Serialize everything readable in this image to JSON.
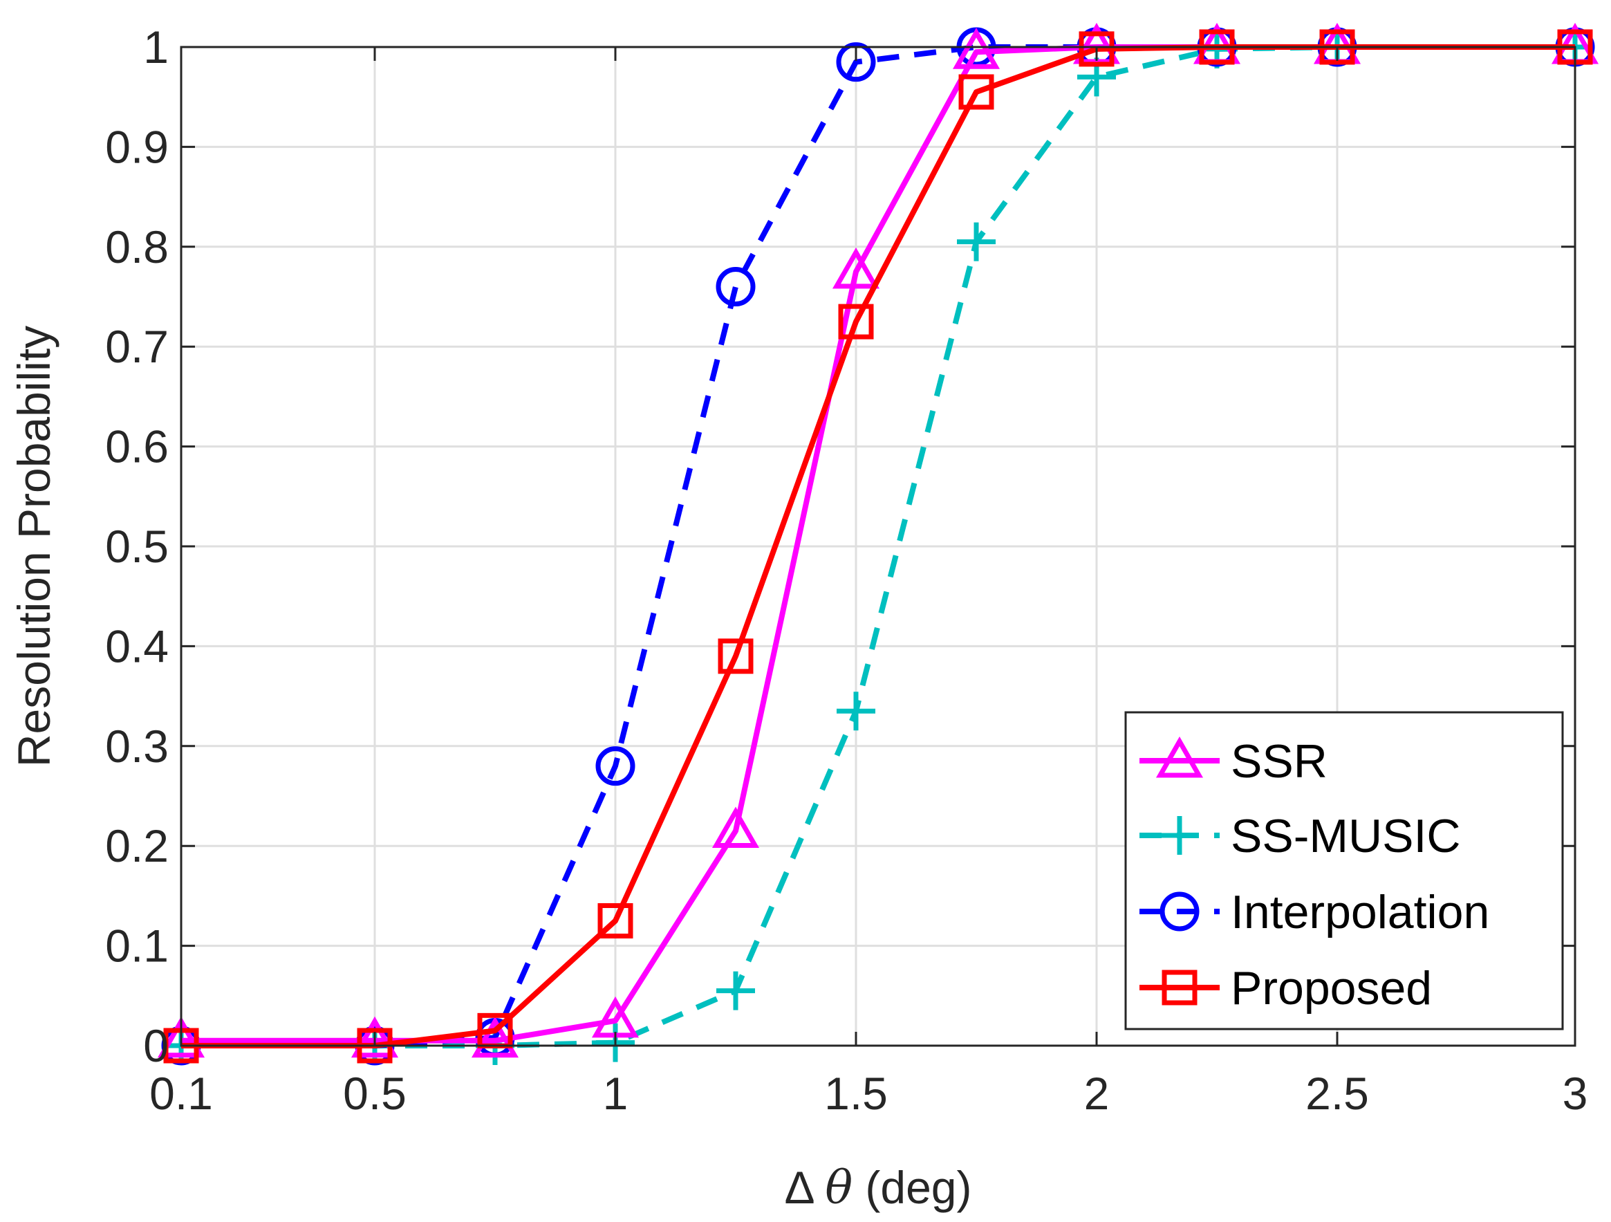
{
  "chart_data": {
    "type": "line",
    "xlabel_symbol": "Δ",
    "xlabel_var": "θ",
    "xlabel_unit": "(deg)",
    "ylabel": "Resolution Probability",
    "xlim": [
      0.1,
      3
    ],
    "ylim": [
      0,
      1
    ],
    "grid": true,
    "legend_position": "bottom-right",
    "xticks": [
      {
        "value": 0.1,
        "label": "0.1"
      },
      {
        "value": 0.5,
        "label": "0.5"
      },
      {
        "value": 1,
        "label": "1"
      },
      {
        "value": 1.5,
        "label": "1.5"
      },
      {
        "value": 2,
        "label": "2"
      },
      {
        "value": 2.5,
        "label": "2.5"
      },
      {
        "value": 3,
        "label": "3"
      }
    ],
    "yticks": [
      {
        "value": 0,
        "label": "0"
      },
      {
        "value": 0.1,
        "label": "0.1"
      },
      {
        "value": 0.2,
        "label": "0.2"
      },
      {
        "value": 0.3,
        "label": "0.3"
      },
      {
        "value": 0.4,
        "label": "0.4"
      },
      {
        "value": 0.5,
        "label": "0.5"
      },
      {
        "value": 0.6,
        "label": "0.6"
      },
      {
        "value": 0.7,
        "label": "0.7"
      },
      {
        "value": 0.8,
        "label": "0.8"
      },
      {
        "value": 0.9,
        "label": "0.9"
      },
      {
        "value": 1,
        "label": "1"
      }
    ],
    "x": [
      0.1,
      0.5,
      0.75,
      1,
      1.25,
      1.5,
      1.75,
      2,
      2.25,
      2.5,
      3
    ],
    "series": [
      {
        "name": "SSR",
        "color": "#ff00ff",
        "dash": false,
        "marker": "triangle",
        "values": [
          0.005,
          0.005,
          0.005,
          0.025,
          0.215,
          0.775,
          0.995,
          1,
          1,
          1,
          1
        ]
      },
      {
        "name": "SS-MUSIC",
        "color": "#00bfbf",
        "dash": true,
        "marker": "plus",
        "values": [
          0,
          0,
          0,
          0.003,
          0.055,
          0.335,
          0.805,
          0.97,
          0.998,
          1,
          1
        ]
      },
      {
        "name": "Interpolation",
        "color": "#0000ff",
        "dash": true,
        "marker": "circle",
        "values": [
          0,
          0,
          0.008,
          0.28,
          0.76,
          0.985,
          1,
          1,
          1,
          1,
          1
        ]
      },
      {
        "name": "Proposed",
        "color": "#ff0000",
        "dash": false,
        "marker": "square",
        "values": [
          0,
          0,
          0.015,
          0.125,
          0.39,
          0.725,
          0.955,
          0.998,
          1,
          1,
          1
        ]
      }
    ]
  }
}
